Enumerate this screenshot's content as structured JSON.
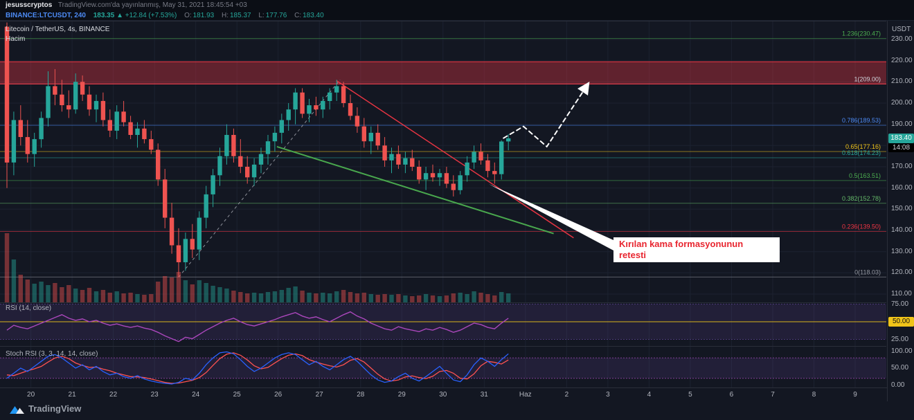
{
  "header": {
    "author": "jesusscryptos",
    "published": "TradingView.com'da yayınlanmış, May 31, 2021 18:45:54 +03",
    "symbol_line": {
      "symbol": "BINANCE:LTCUSDT, 240",
      "last": "183.35",
      "arrow": "▲",
      "change": "+12.84 (+7.53%)",
      "o_label": "O:",
      "o": "181.93",
      "h_label": "H:",
      "h": "185.37",
      "l_label": "L:",
      "l": "177.76",
      "c_label": "C:",
      "c": "183.40"
    }
  },
  "legend": {
    "title": "Litecoin / TetherUS, 4s, BINANCE",
    "volume": "Hacim"
  },
  "panes": {
    "rsi_label": "RSI (14, close)",
    "stoch_label": "Stoch RSI (3, 3, 14, 14, close)"
  },
  "axis": {
    "currency": "USDT",
    "price_ticks": [
      "230.00",
      "220.00",
      "210.00",
      "200.00",
      "190.00",
      "180.00",
      "170.00",
      "160.00",
      "150.00",
      "140.00",
      "130.00",
      "120.00",
      "110.00"
    ],
    "rsi_ticks": [
      "75.00",
      "25.00"
    ],
    "stoch_ticks": [
      "100.00",
      "50.00",
      "0.00"
    ],
    "time_labels": [
      "20",
      "21",
      "22",
      "23",
      "24",
      "25",
      "26",
      "27",
      "28",
      "29",
      "30",
      "31",
      "Haz",
      "2",
      "3",
      "4",
      "5",
      "6",
      "7",
      "8",
      "9"
    ]
  },
  "badges": {
    "price": "183.40",
    "countdown": "14:08",
    "rsi": "50.00"
  },
  "annotation": {
    "line1": "Kırılan kama formasyonunun",
    "line2": "retesti"
  },
  "footer": {
    "brand": "TradingView"
  },
  "chart_data": {
    "type": "candlestick",
    "title": "Litecoin / TetherUS, 4s, BINANCE",
    "symbol": "BINANCE:LTCUSDT",
    "interval_minutes": 240,
    "ylim": [
      106,
      237
    ],
    "colors": {
      "up": "#26a69a",
      "down": "#ef5350",
      "grid": "#1c2230",
      "separator": "#2a2e39"
    },
    "candles": [
      [
        236,
        238,
        160,
        172
      ],
      [
        172,
        196,
        166,
        192
      ],
      [
        192,
        199,
        180,
        184
      ],
      [
        184,
        192,
        172,
        176
      ],
      [
        176,
        186,
        170,
        183
      ],
      [
        183,
        196,
        179,
        193
      ],
      [
        193,
        215,
        189,
        208
      ],
      [
        208,
        216,
        199,
        204
      ],
      [
        204,
        211,
        196,
        199
      ],
      [
        199,
        206,
        193,
        197
      ],
      [
        197,
        214,
        195,
        210
      ],
      [
        210,
        213,
        201,
        204
      ],
      [
        204,
        208,
        194,
        197
      ],
      [
        197,
        204,
        191,
        201
      ],
      [
        201,
        205,
        189,
        192
      ],
      [
        192,
        197,
        184,
        187
      ],
      [
        187,
        199,
        183,
        196
      ],
      [
        196,
        201,
        189,
        191
      ],
      [
        191,
        194,
        183,
        185
      ],
      [
        185,
        191,
        179,
        188
      ],
      [
        188,
        192,
        181,
        183
      ],
      [
        183,
        187,
        176,
        178
      ],
      [
        178,
        181,
        161,
        164
      ],
      [
        164,
        169,
        141,
        146
      ],
      [
        146,
        153,
        129,
        133
      ],
      [
        133,
        141,
        118,
        125
      ],
      [
        125,
        139,
        121,
        136
      ],
      [
        136,
        143,
        127,
        131
      ],
      [
        131,
        149,
        126,
        146
      ],
      [
        146,
        161,
        141,
        157
      ],
      [
        157,
        169,
        151,
        166
      ],
      [
        166,
        179,
        161,
        175
      ],
      [
        175,
        190,
        171,
        185
      ],
      [
        185,
        188,
        172,
        175
      ],
      [
        175,
        183,
        167,
        170
      ],
      [
        170,
        175,
        162,
        165
      ],
      [
        165,
        174,
        161,
        171
      ],
      [
        171,
        179,
        167,
        176
      ],
      [
        176,
        185,
        171,
        182
      ],
      [
        182,
        189,
        177,
        186
      ],
      [
        186,
        195,
        181,
        192
      ],
      [
        192,
        200,
        187,
        197
      ],
      [
        197,
        207,
        190,
        205
      ],
      [
        205,
        207,
        193,
        195
      ],
      [
        195,
        202,
        191,
        199
      ],
      [
        199,
        203,
        194,
        197
      ],
      [
        197,
        203,
        193,
        201
      ],
      [
        201,
        207,
        197,
        205
      ],
      [
        205,
        211,
        201,
        208
      ],
      [
        208,
        210,
        198,
        200
      ],
      [
        200,
        204,
        192,
        194
      ],
      [
        194,
        198,
        186,
        189
      ],
      [
        189,
        193,
        179,
        182
      ],
      [
        182,
        189,
        176,
        186
      ],
      [
        186,
        190,
        178,
        180
      ],
      [
        180,
        184,
        170,
        173
      ],
      [
        173,
        179,
        167,
        176
      ],
      [
        176,
        180,
        169,
        171
      ],
      [
        171,
        177,
        167,
        174
      ],
      [
        174,
        178,
        168,
        170
      ],
      [
        170,
        173,
        162,
        164
      ],
      [
        164,
        170,
        159,
        167
      ],
      [
        167,
        171,
        163,
        165
      ],
      [
        165,
        169,
        161,
        167
      ],
      [
        167,
        170,
        160,
        162
      ],
      [
        162,
        166,
        156,
        159
      ],
      [
        159,
        168,
        157,
        166
      ],
      [
        166,
        175,
        163,
        172
      ],
      [
        172,
        180,
        169,
        177
      ],
      [
        177,
        181,
        171,
        173
      ],
      [
        173,
        176,
        165,
        168
      ],
      [
        168,
        172,
        162,
        166.5
      ],
      [
        166.5,
        182.5,
        164,
        181.9
      ],
      [
        181.93,
        185.37,
        177.76,
        183.4
      ]
    ],
    "volume": [
      100,
      62,
      40,
      33,
      27,
      30,
      25,
      28,
      22,
      25,
      20,
      18,
      21,
      16,
      18,
      14,
      16,
      13,
      14,
      12,
      11,
      12,
      30,
      38,
      36,
      44,
      32,
      26,
      32,
      28,
      24,
      22,
      20,
      17,
      15,
      13,
      14,
      13,
      15,
      16,
      18,
      21,
      23,
      17,
      14,
      13,
      14,
      13,
      16,
      18,
      15,
      13,
      14,
      12,
      11,
      12,
      11,
      12,
      10,
      9,
      10,
      12,
      10,
      9,
      10,
      13,
      14,
      12,
      16,
      14,
      12,
      10,
      15,
      13
    ],
    "fib_levels": [
      {
        "label": "1.236(230.47)",
        "value": 230.47,
        "color": "#4caf50"
      },
      {
        "label": "1(209.00)",
        "value": 209.0,
        "color": "#d1d4dc"
      },
      {
        "label": "0.786(189.53)",
        "value": 189.53,
        "color": "#4d8bf5"
      },
      {
        "label": "0.65(177.16)",
        "value": 177.16,
        "color": "#f0c419"
      },
      {
        "label": "0.618(174.23)",
        "value": 174.23,
        "color": "#26a69a"
      },
      {
        "label": "0.5(163.51)",
        "value": 163.51,
        "color": "#4caf50"
      },
      {
        "label": "0.382(152.78)",
        "value": 152.78,
        "color": "#66bb6a"
      },
      {
        "label": "0.236(139.50)",
        "value": 139.5,
        "color": "#f23645"
      },
      {
        "label": "0(118.03)",
        "value": 118.03,
        "color": "#9598a1"
      }
    ],
    "zone": {
      "top": 219.5,
      "bottom": 209.0,
      "color": "#f23645"
    },
    "trendlines": [
      {
        "name": "dashed-rally-line",
        "from": [
          25,
          118
        ],
        "to": [
          48.5,
          211
        ],
        "color": "#9598a1",
        "width": 1,
        "dash": "4,4"
      },
      {
        "name": "wedge-lower-green",
        "from": [
          39.3,
          179.5
        ],
        "to": [
          79.6,
          138.5
        ],
        "color": "#4caf50",
        "width": 2,
        "dash": ""
      },
      {
        "name": "wedge-upper-red",
        "from": [
          48,
          210.5
        ],
        "to": [
          82.5,
          136.5
        ],
        "color": "#f23645",
        "width": 1.5,
        "dash": ""
      }
    ],
    "projection": {
      "color": "#ffffff",
      "points": [
        [
          72.3,
          183.5
        ],
        [
          75.2,
          189
        ],
        [
          78.6,
          179.5
        ],
        [
          84.6,
          209
        ]
      ]
    },
    "rsi": {
      "color": "#ab47bc",
      "band": [
        25,
        75
      ],
      "level_line": 50,
      "values": [
        38,
        45,
        42,
        40,
        44,
        48,
        52,
        56,
        60,
        55,
        52,
        54,
        50,
        52,
        48,
        45,
        47,
        44,
        42,
        44,
        41,
        39,
        35,
        30,
        26,
        22,
        28,
        26,
        32,
        38,
        43,
        48,
        52,
        55,
        50,
        46,
        44,
        47,
        50,
        53,
        57,
        60,
        63,
        58,
        55,
        57,
        53,
        50,
        55,
        60,
        64,
        58,
        54,
        48,
        44,
        40,
        38,
        43,
        40,
        38,
        36,
        40,
        38,
        42,
        39,
        35,
        38,
        43,
        48,
        46,
        42,
        40,
        48,
        55
      ]
    },
    "stoch": {
      "k_color": "#2962ff",
      "d_color": "#ff5252",
      "band": [
        20,
        80
      ],
      "k": [
        20,
        35,
        50,
        40,
        55,
        70,
        85,
        90,
        80,
        65,
        50,
        60,
        45,
        55,
        40,
        30,
        35,
        25,
        20,
        28,
        18,
        12,
        8,
        5,
        3,
        8,
        20,
        15,
        35,
        60,
        80,
        95,
        98,
        92,
        75,
        55,
        40,
        50,
        65,
        80,
        90,
        95,
        90,
        75,
        60,
        70,
        55,
        45,
        60,
        75,
        85,
        70,
        50,
        30,
        15,
        8,
        12,
        25,
        35,
        20,
        12,
        25,
        40,
        55,
        35,
        15,
        10,
        30,
        60,
        80,
        70,
        55,
        75,
        92
      ],
      "d": [
        30,
        28,
        35,
        42,
        48,
        55,
        68,
        80,
        85,
        78,
        65,
        58,
        52,
        53,
        47,
        42,
        35,
        30,
        25,
        24,
        22,
        18,
        13,
        8,
        5,
        6,
        10,
        14,
        22,
        37,
        58,
        78,
        91,
        95,
        88,
        74,
        57,
        48,
        52,
        65,
        78,
        88,
        92,
        87,
        75,
        68,
        62,
        57,
        53,
        60,
        73,
        78,
        68,
        50,
        32,
        18,
        12,
        15,
        24,
        27,
        22,
        19,
        26,
        40,
        43,
        35,
        20,
        18,
        33,
        57,
        70,
        67,
        62,
        74
      ]
    }
  }
}
